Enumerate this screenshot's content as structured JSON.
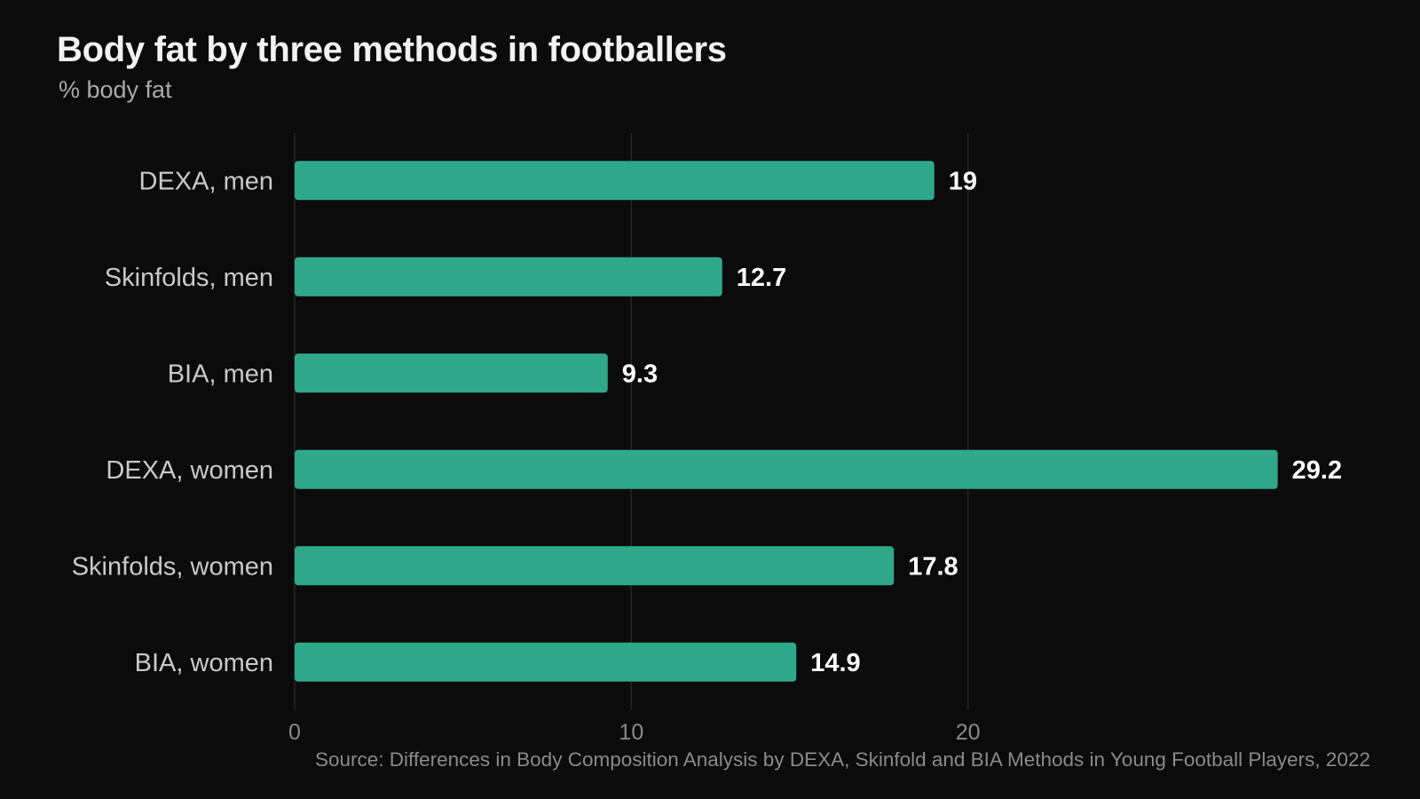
{
  "chart_data": {
    "type": "bar",
    "orientation": "horizontal",
    "title": "Body fat by three methods in footballers",
    "subtitle": "% body fat",
    "categories": [
      "DEXA, men",
      "Skinfolds, men",
      "BIA, men",
      "DEXA, women",
      "Skinfolds, women",
      "BIA, women"
    ],
    "values": [
      19,
      12.7,
      9.3,
      29.2,
      17.8,
      14.9
    ],
    "value_labels": [
      "19",
      "12.7",
      "9.3",
      "29.2",
      "17.8",
      "14.9"
    ],
    "x_ticks": [
      "0",
      "10",
      "20"
    ],
    "xlim": [
      0,
      30
    ],
    "grid": true,
    "legend": "none",
    "colors": {
      "bar": "#2fa88a",
      "background": "#0b0b0b",
      "grid": "#262626",
      "category_label": "#c9c9c9",
      "value_label": "#ffffff",
      "tick_label": "#8a8a8a"
    }
  },
  "source": "Source: Differences in Body Composition Analysis by DEXA, Skinfold and BIA Methods in Young Football Players, 2022"
}
